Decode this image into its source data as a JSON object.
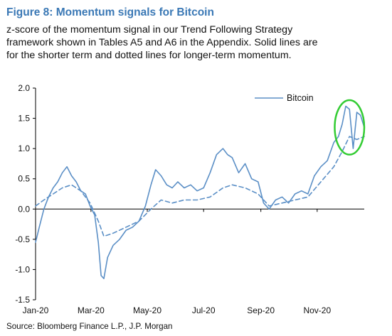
{
  "figure": {
    "title": "Figure 8: Momentum signals for Bitcoin",
    "caption": [
      "z-score of the momentum signal in our Trend Following Strategy",
      "framework shown in Tables A5 and A6 in the Appendix. Solid lines are",
      "for the shorter term and dotted lines for longer-term momentum."
    ],
    "source": "Source: Bloomberg Finance L.P., J.P. Morgan"
  },
  "colors": {
    "series": "#5b8fc6",
    "highlight": "#33cc33",
    "axis": "#000000"
  },
  "chart_data": {
    "type": "line",
    "legend_position": "top-right",
    "grid": false,
    "ylim": [
      -1.5,
      2.0
    ],
    "yticks": [
      "2.0",
      "1.5",
      "1.0",
      "0.5",
      "0.0",
      "-0.5",
      "-1.0",
      "-1.5"
    ],
    "xticks": [
      "Jan-20",
      "Mar-20",
      "May-20",
      "Jul-20",
      "Sep-20",
      "Nov-20"
    ],
    "xtick_dates": [
      "2020-01-01",
      "2020-03-01",
      "2020-05-01",
      "2020-07-01",
      "2020-09-01",
      "2020-11-01"
    ],
    "xlim": [
      "2020-01-01",
      "2020-12-22"
    ],
    "series": [
      {
        "name": "Bitcoin",
        "style": "solid",
        "x": [
          "2020-01-01",
          "2020-01-05",
          "2020-01-10",
          "2020-01-15",
          "2020-01-20",
          "2020-01-25",
          "2020-01-30",
          "2020-02-04",
          "2020-02-09",
          "2020-02-14",
          "2020-02-19",
          "2020-02-24",
          "2020-02-29",
          "2020-03-05",
          "2020-03-09",
          "2020-03-12",
          "2020-03-15",
          "2020-03-19",
          "2020-03-25",
          "2020-04-01",
          "2020-04-08",
          "2020-04-15",
          "2020-04-22",
          "2020-04-29",
          "2020-05-05",
          "2020-05-10",
          "2020-05-16",
          "2020-05-22",
          "2020-05-28",
          "2020-06-03",
          "2020-06-10",
          "2020-06-17",
          "2020-06-24",
          "2020-07-01",
          "2020-07-08",
          "2020-07-15",
          "2020-07-22",
          "2020-07-27",
          "2020-08-01",
          "2020-08-08",
          "2020-08-15",
          "2020-08-22",
          "2020-08-29",
          "2020-09-04",
          "2020-09-10",
          "2020-09-17",
          "2020-09-24",
          "2020-10-01",
          "2020-10-08",
          "2020-10-15",
          "2020-10-22",
          "2020-10-29",
          "2020-11-05",
          "2020-11-12",
          "2020-11-19",
          "2020-11-24",
          "2020-11-28",
          "2020-12-02",
          "2020-12-06",
          "2020-12-10",
          "2020-12-14",
          "2020-12-18",
          "2020-12-22"
        ],
        "y": [
          -0.55,
          -0.3,
          0.0,
          0.2,
          0.35,
          0.45,
          0.6,
          0.7,
          0.55,
          0.45,
          0.3,
          0.25,
          0.05,
          -0.1,
          -0.55,
          -1.1,
          -1.15,
          -0.8,
          -0.6,
          -0.5,
          -0.35,
          -0.3,
          -0.2,
          0.05,
          0.4,
          0.65,
          0.55,
          0.4,
          0.35,
          0.45,
          0.35,
          0.4,
          0.3,
          0.35,
          0.6,
          0.9,
          1.0,
          0.9,
          0.85,
          0.6,
          0.75,
          0.5,
          0.45,
          0.1,
          0.0,
          0.15,
          0.2,
          0.1,
          0.25,
          0.3,
          0.25,
          0.55,
          0.7,
          0.8,
          1.1,
          1.2,
          1.4,
          1.7,
          1.65,
          1.0,
          1.6,
          1.55,
          1.35
        ]
      },
      {
        "name": "",
        "style": "dotted",
        "x": [
          "2020-01-01",
          "2020-01-10",
          "2020-01-20",
          "2020-01-30",
          "2020-02-09",
          "2020-02-19",
          "2020-02-29",
          "2020-03-09",
          "2020-03-15",
          "2020-03-25",
          "2020-04-08",
          "2020-04-22",
          "2020-05-05",
          "2020-05-16",
          "2020-05-28",
          "2020-06-10",
          "2020-06-24",
          "2020-07-08",
          "2020-07-22",
          "2020-08-01",
          "2020-08-15",
          "2020-08-29",
          "2020-09-10",
          "2020-09-24",
          "2020-10-08",
          "2020-10-22",
          "2020-11-05",
          "2020-11-19",
          "2020-11-28",
          "2020-12-06",
          "2020-12-14",
          "2020-12-22"
        ],
        "y": [
          0.05,
          0.15,
          0.25,
          0.35,
          0.4,
          0.3,
          0.1,
          -0.2,
          -0.45,
          -0.4,
          -0.3,
          -0.2,
          0.0,
          0.15,
          0.1,
          0.15,
          0.15,
          0.2,
          0.35,
          0.4,
          0.35,
          0.25,
          0.05,
          0.1,
          0.15,
          0.2,
          0.45,
          0.7,
          0.95,
          1.2,
          1.15,
          1.2
        ]
      }
    ],
    "annotations": [
      {
        "type": "ellipse",
        "description": "highlight",
        "center": [
          "2020-12-06",
          1.35
        ],
        "radius_days": 16,
        "radius_y": 0.45
      }
    ]
  }
}
